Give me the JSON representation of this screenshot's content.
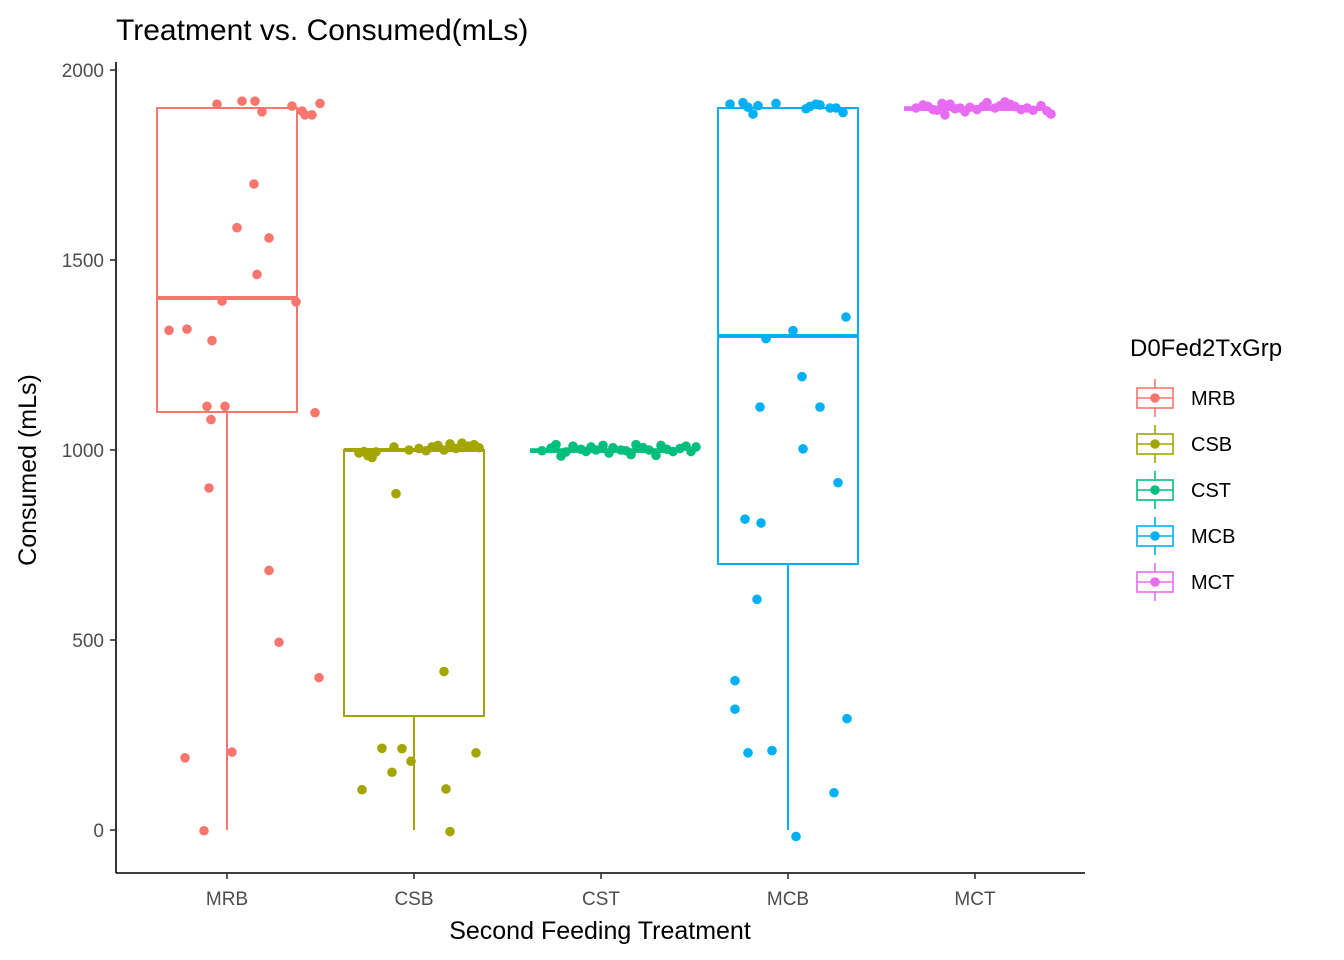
{
  "chart_data": {
    "type": "box",
    "title": "Treatment vs. Consumed(mLs)",
    "xlabel": "Second Feeding Treatment",
    "ylabel": "Consumed (mLs)",
    "ylim": [
      -110,
      2020
    ],
    "yticks": [
      0,
      500,
      1000,
      1500,
      2000
    ],
    "categories": [
      "MRB",
      "CSB",
      "CST",
      "MCB",
      "MCT"
    ],
    "grid": false,
    "legend": {
      "title": "D0Fed2TxGrp",
      "position": "right",
      "entries": [
        "MRB",
        "CSB",
        "CST",
        "MCB",
        "MCT"
      ]
    },
    "series": [
      {
        "name": "MRB",
        "color": "#F8766D",
        "box": {
          "min": 0,
          "q1": 1100,
          "median": 1400,
          "q3": 1900,
          "max": 1900
        },
        "points": [
          {
            "x": -0.1,
            "y": 1910
          },
          {
            "x": 0.15,
            "y": 1918
          },
          {
            "x": 0.28,
            "y": 1918
          },
          {
            "x": 0.35,
            "y": 1890
          },
          {
            "x": 0.65,
            "y": 1905
          },
          {
            "x": 0.75,
            "y": 1892
          },
          {
            "x": 0.78,
            "y": 1882
          },
          {
            "x": 0.85,
            "y": 1882
          },
          {
            "x": 0.93,
            "y": 1912
          },
          {
            "x": 0.27,
            "y": 1700
          },
          {
            "x": 0.1,
            "y": 1585
          },
          {
            "x": 0.42,
            "y": 1558
          },
          {
            "x": 0.3,
            "y": 1462
          },
          {
            "x": -0.05,
            "y": 1392
          },
          {
            "x": 0.69,
            "y": 1390
          },
          {
            "x": -0.58,
            "y": 1315
          },
          {
            "x": -0.4,
            "y": 1318
          },
          {
            "x": -0.15,
            "y": 1288
          },
          {
            "x": -0.2,
            "y": 1115
          },
          {
            "x": -0.16,
            "y": 1080
          },
          {
            "x": -0.02,
            "y": 1115
          },
          {
            "x": 0.88,
            "y": 1098
          },
          {
            "x": -0.18,
            "y": 900
          },
          {
            "x": 0.42,
            "y": 683
          },
          {
            "x": 0.52,
            "y": 494
          },
          {
            "x": 0.92,
            "y": 401
          },
          {
            "x": -0.42,
            "y": 190
          },
          {
            "x": 0.05,
            "y": 205
          },
          {
            "x": -0.23,
            "y": -2
          }
        ]
      },
      {
        "name": "CSB",
        "color": "#A3A500",
        "box": {
          "min": 0,
          "q1": 300,
          "median": 1000,
          "q3": 1000,
          "max": 1000
        },
        "points": [
          {
            "x": -0.55,
            "y": 992
          },
          {
            "x": -0.5,
            "y": 996
          },
          {
            "x": -0.46,
            "y": 985
          },
          {
            "x": -0.42,
            "y": 980
          },
          {
            "x": -0.38,
            "y": 995
          },
          {
            "x": -0.2,
            "y": 1008
          },
          {
            "x": -0.05,
            "y": 1000
          },
          {
            "x": 0.05,
            "y": 1004
          },
          {
            "x": 0.12,
            "y": 998
          },
          {
            "x": 0.18,
            "y": 1008
          },
          {
            "x": 0.24,
            "y": 1012
          },
          {
            "x": 0.3,
            "y": 1000
          },
          {
            "x": 0.36,
            "y": 1016
          },
          {
            "x": 0.42,
            "y": 1004
          },
          {
            "x": 0.48,
            "y": 1018
          },
          {
            "x": 0.54,
            "y": 1010
          },
          {
            "x": 0.6,
            "y": 1014
          },
          {
            "x": 0.65,
            "y": 1006
          },
          {
            "x": -0.18,
            "y": 885
          },
          {
            "x": 0.3,
            "y": 417
          },
          {
            "x": -0.32,
            "y": 215
          },
          {
            "x": -0.12,
            "y": 214
          },
          {
            "x": 0.62,
            "y": 203
          },
          {
            "x": -0.03,
            "y": 181
          },
          {
            "x": -0.22,
            "y": 152
          },
          {
            "x": -0.52,
            "y": 106
          },
          {
            "x": 0.32,
            "y": 108
          },
          {
            "x": 0.36,
            "y": -4
          }
        ]
      },
      {
        "name": "CST",
        "color": "#00BF7D",
        "box": {
          "min": 995,
          "q1": 995,
          "median": 998,
          "q3": 1002,
          "max": 1002
        },
        "points": [
          {
            "x": -0.59,
            "y": 998
          },
          {
            "x": -0.5,
            "y": 1005
          },
          {
            "x": -0.45,
            "y": 1014
          },
          {
            "x": -0.4,
            "y": 984
          },
          {
            "x": -0.35,
            "y": 995
          },
          {
            "x": -0.28,
            "y": 1010
          },
          {
            "x": -0.2,
            "y": 1002
          },
          {
            "x": -0.15,
            "y": 996
          },
          {
            "x": -0.1,
            "y": 1008
          },
          {
            "x": -0.05,
            "y": 1000
          },
          {
            "x": 0.02,
            "y": 1012
          },
          {
            "x": 0.08,
            "y": 992
          },
          {
            "x": 0.12,
            "y": 1006
          },
          {
            "x": 0.2,
            "y": 1000
          },
          {
            "x": 0.25,
            "y": 998
          },
          {
            "x": 0.3,
            "y": 988
          },
          {
            "x": 0.35,
            "y": 1014
          },
          {
            "x": 0.42,
            "y": 1006
          },
          {
            "x": 0.48,
            "y": 1000
          },
          {
            "x": 0.55,
            "y": 986
          },
          {
            "x": 0.6,
            "y": 1012
          },
          {
            "x": 0.66,
            "y": 1002
          },
          {
            "x": 0.72,
            "y": 996
          },
          {
            "x": 0.79,
            "y": 1004
          },
          {
            "x": 0.85,
            "y": 1010
          },
          {
            "x": 0.9,
            "y": 996
          },
          {
            "x": 0.95,
            "y": 1008
          }
        ]
      },
      {
        "name": "MCB",
        "color": "#00B0F6",
        "box": {
          "min": 0,
          "q1": 700,
          "median": 1300,
          "q3": 1900,
          "max": 1900
        },
        "points": [
          {
            "x": -0.58,
            "y": 1910
          },
          {
            "x": -0.45,
            "y": 1914
          },
          {
            "x": -0.4,
            "y": 1902
          },
          {
            "x": -0.35,
            "y": 1884
          },
          {
            "x": -0.3,
            "y": 1906
          },
          {
            "x": -0.12,
            "y": 1912
          },
          {
            "x": 0.18,
            "y": 1898
          },
          {
            "x": 0.22,
            "y": 1904
          },
          {
            "x": 0.28,
            "y": 1910
          },
          {
            "x": 0.32,
            "y": 1908
          },
          {
            "x": 0.42,
            "y": 1900
          },
          {
            "x": 0.48,
            "y": 1900
          },
          {
            "x": 0.55,
            "y": 1888
          },
          {
            "x": 0.58,
            "y": 1350
          },
          {
            "x": 0.05,
            "y": 1314
          },
          {
            "x": -0.22,
            "y": 1293
          },
          {
            "x": 0.14,
            "y": 1193
          },
          {
            "x": -0.28,
            "y": 1113
          },
          {
            "x": 0.32,
            "y": 1113
          },
          {
            "x": 0.15,
            "y": 1003
          },
          {
            "x": 0.5,
            "y": 914
          },
          {
            "x": -0.43,
            "y": 818
          },
          {
            "x": -0.27,
            "y": 808
          },
          {
            "x": -0.31,
            "y": 607
          },
          {
            "x": -0.53,
            "y": 393
          },
          {
            "x": -0.53,
            "y": 318
          },
          {
            "x": 0.59,
            "y": 293
          },
          {
            "x": -0.4,
            "y": 203
          },
          {
            "x": -0.16,
            "y": 209
          },
          {
            "x": 0.46,
            "y": 98
          },
          {
            "x": 0.08,
            "y": -17
          }
        ]
      },
      {
        "name": "MCT",
        "color": "#E76BF3",
        "box": {
          "min": 1895,
          "q1": 1895,
          "median": 1898,
          "q3": 1902,
          "max": 1902
        },
        "points": [
          {
            "x": -0.59,
            "y": 1900
          },
          {
            "x": -0.52,
            "y": 1908
          },
          {
            "x": -0.47,
            "y": 1904
          },
          {
            "x": -0.42,
            "y": 1896
          },
          {
            "x": -0.38,
            "y": 1894
          },
          {
            "x": -0.33,
            "y": 1912
          },
          {
            "x": -0.3,
            "y": 1882
          },
          {
            "x": -0.25,
            "y": 1910
          },
          {
            "x": -0.2,
            "y": 1898
          },
          {
            "x": -0.15,
            "y": 1900
          },
          {
            "x": -0.1,
            "y": 1890
          },
          {
            "x": -0.05,
            "y": 1902
          },
          {
            "x": 0.02,
            "y": 1896
          },
          {
            "x": 0.08,
            "y": 1904
          },
          {
            "x": 0.12,
            "y": 1914
          },
          {
            "x": 0.2,
            "y": 1900
          },
          {
            "x": 0.25,
            "y": 1906
          },
          {
            "x": 0.3,
            "y": 1916
          },
          {
            "x": 0.35,
            "y": 1910
          },
          {
            "x": 0.4,
            "y": 1904
          },
          {
            "x": 0.46,
            "y": 1896
          },
          {
            "x": 0.52,
            "y": 1900
          },
          {
            "x": 0.58,
            "y": 1894
          },
          {
            "x": 0.66,
            "y": 1906
          },
          {
            "x": 0.72,
            "y": 1892
          },
          {
            "x": 0.76,
            "y": 1884
          }
        ]
      }
    ]
  }
}
